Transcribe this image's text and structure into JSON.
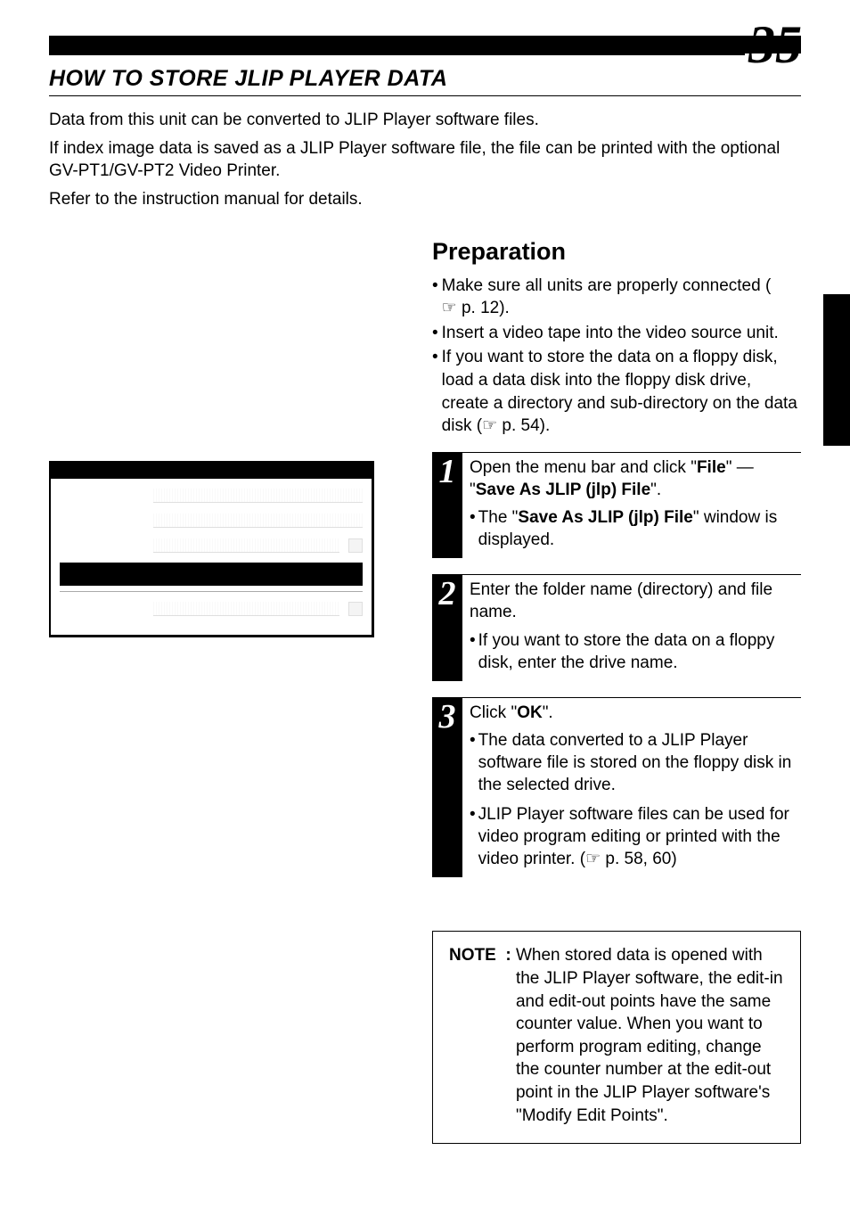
{
  "page_number": "35",
  "heading": "HOW TO STORE JLIP PLAYER DATA",
  "intro": [
    "Data from this unit can be converted to JLIP Player software files.",
    "If index image data is saved as a JLIP Player software file, the file can be printed with the optional GV-PT1/GV-PT2 Video Printer.",
    "Refer to the instruction manual for details."
  ],
  "sub_heading": "Preparation",
  "prep_items": [
    {
      "pre": "Make sure all units are properly connected (",
      "ref": "☞ p. 12",
      "post": ")."
    },
    {
      "pre": "Insert a video tape into the video source unit.",
      "ref": "",
      "post": ""
    },
    {
      "pre": "If you want to store the data on a floppy disk, load a data disk into the floppy disk drive, create a directory and sub-directory on the data disk (",
      "ref": "☞ p. 54",
      "post": ")."
    }
  ],
  "steps": [
    {
      "num": "1",
      "main_parts": [
        "Open the menu bar and click \"",
        "File",
        "\" — \"",
        "Save As JLIP (jlp) File",
        "\"."
      ],
      "subs": [
        {
          "parts": [
            "The \"",
            "Save As JLIP (jlp) File",
            "\" window is displayed."
          ]
        }
      ]
    },
    {
      "num": "2",
      "main_parts": [
        "Enter the folder name (directory) and file name."
      ],
      "subs": [
        {
          "parts": [
            "If you want to store the data on a floppy disk, enter the drive name."
          ]
        }
      ]
    },
    {
      "num": "3",
      "main_parts": [
        "Click \"",
        "OK",
        "\"."
      ],
      "subs": [
        {
          "parts": [
            "The data converted to a JLIP Player software file is stored on the floppy disk in the selected drive."
          ]
        },
        {
          "parts": [
            "JLIP Player software files can be used for video program editing or printed with the video printer. (",
            "☞ p. 58, 60",
            ")"
          ]
        }
      ]
    }
  ],
  "note_label": "NOTE  : ",
  "note_text": "When stored data is opened with the JLIP Player software, the edit-in and edit-out points have the same counter value. When you want to perform program editing, change the counter number at the edit-out point in the JLIP Player software's \"Modify Edit Points\".",
  "colors": {
    "text": "#000000",
    "bg": "#ffffff",
    "reverse_bg": "#000000",
    "reverse_text": "#ffffff"
  },
  "typography": {
    "body_size_pt": 14,
    "heading_size_pt": 19,
    "subheading_size_pt": 20,
    "page_number_size_pt": 45,
    "step_number_size_pt": 28
  }
}
